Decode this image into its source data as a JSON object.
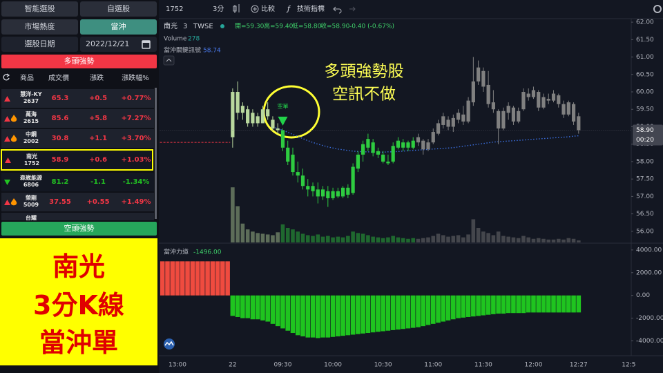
{
  "toolbar": {
    "symbol": "1752",
    "interval": "3分",
    "compare": "比較",
    "indicators": "技術指標"
  },
  "sidebar": {
    "tabs": [
      "智能選股",
      "自選股",
      "市場熱度",
      "當沖"
    ],
    "date_label": "選股日期",
    "date": "2022/12/21",
    "bull_section": "多頭強勢",
    "bear_section": "空頭強勢",
    "table": {
      "header": [
        "商品",
        "成交價",
        "漲跌",
        "漲跌幅%"
      ],
      "rows": [
        [
          "慧洋-KY",
          "2637",
          "65.3",
          "+0.5",
          "+0.77%"
        ],
        [
          "萬海",
          "2615",
          "85.6",
          "+5.8",
          "+7.27%"
        ],
        [
          "中鋼",
          "2002",
          "30.8",
          "+1.1",
          "+3.70%"
        ],
        [
          "南光",
          "1752",
          "58.9",
          "+0.6",
          "+1.03%"
        ],
        [
          "森崴能源",
          "6806",
          "81.2",
          "-1.1",
          "-1.34%"
        ],
        [
          "榮剛",
          "5009",
          "37.55",
          "+0.55",
          "+1.49%"
        ],
        [
          "台耀"
        ]
      ]
    }
  },
  "legend": {
    "name": "南光",
    "interval": "3",
    "exchange": "TWSE",
    "ohlc": [
      "開=59.30",
      "高=59.40",
      "低=58.80",
      "收=58.90"
    ],
    "change": "-0.40 (-0.67%)",
    "volume_label": "Volume",
    "volume": "278",
    "signal_label": "當沖關鍵訊號",
    "signal": "58.74",
    "power_label": "當沖力道",
    "power": "-1496.00"
  },
  "annotation": {
    "lines": [
      "多頭強勢股",
      "空訊不做"
    ]
  },
  "caption": {
    "lines": [
      "南光",
      "3分K線",
      "當沖單"
    ]
  },
  "chart_data": [
    {
      "type": "candlestick",
      "categories": [
        null,
        null,
        null,
        "13:00",
        null,
        null,
        null,
        null,
        null,
        null,
        null,
        null,
        null,
        null,
        "22",
        null,
        null,
        null,
        null,
        null,
        null,
        null,
        null,
        null,
        "09:30",
        null,
        null,
        null,
        null,
        null,
        null,
        null,
        null,
        null,
        "10:00",
        null,
        null,
        null,
        null,
        null,
        null,
        null,
        null,
        null,
        "10:30",
        null,
        null,
        null,
        null,
        null,
        null,
        null,
        null,
        null,
        "11:00",
        null,
        null,
        null,
        null,
        null,
        null,
        null,
        null,
        null,
        "11:30",
        null,
        null,
        null,
        null,
        null,
        null,
        null,
        null,
        null,
        "12:00",
        null,
        null,
        null,
        null,
        null,
        null,
        null,
        null,
        "12:27",
        null,
        null,
        null,
        null,
        null,
        null,
        null,
        null,
        null,
        "12:5"
      ],
      "open": [
        null,
        null,
        null,
        null,
        null,
        null,
        null,
        null,
        null,
        null,
        null,
        null,
        null,
        null,
        58.7,
        60.0,
        59.4,
        59.5,
        59.1,
        59.3,
        59.1,
        59.5,
        59.2,
        58.95,
        58.9,
        58.4,
        58.2,
        57.7,
        57.6,
        57.3,
        57.3,
        57.2,
        57.0,
        57.15,
        56.95,
        57.15,
        57.0,
        57.25,
        57.1,
        57.8,
        58.2,
        58.4,
        58.55,
        58.3,
        58.2,
        58.0,
        58.0,
        58.4,
        58.55,
        58.4,
        58.4,
        58.55,
        58.6,
        58.35,
        58.55,
        58.8,
        59.05,
        59.2,
        59.0,
        59.2,
        59.35,
        59.15,
        59.7,
        60.3,
        60.6,
        60.2,
        59.7,
        59.45,
        58.95,
        59.4,
        59.55,
        59.15,
        59.5,
        59.95,
        59.85,
        60.0,
        59.55,
        59.8,
        59.75,
        59.9,
        59.65,
        59.35,
        59.65,
        59.3,
        null,
        null,
        null,
        null,
        null,
        null,
        null,
        null,
        null,
        null
      ],
      "high": [
        null,
        null,
        null,
        null,
        null,
        null,
        null,
        null,
        null,
        null,
        null,
        null,
        null,
        null,
        60.1,
        60.3,
        59.7,
        59.6,
        59.5,
        59.4,
        59.6,
        59.7,
        59.3,
        59.1,
        58.95,
        58.6,
        58.4,
        58.0,
        57.8,
        57.5,
        57.4,
        57.4,
        57.3,
        57.3,
        57.25,
        57.25,
        57.3,
        57.35,
        57.95,
        58.3,
        58.6,
        58.8,
        58.65,
        58.4,
        58.3,
        58.2,
        58.55,
        58.7,
        58.65,
        58.6,
        58.7,
        58.8,
        58.65,
        58.65,
        58.95,
        59.2,
        59.4,
        59.3,
        59.35,
        59.5,
        59.6,
        59.85,
        61.0,
        60.9,
        60.7,
        60.6,
        60.05,
        59.5,
        59.55,
        59.7,
        59.6,
        59.55,
        60.1,
        60.1,
        60.15,
        60.05,
        59.95,
        59.95,
        60.05,
        59.95,
        59.75,
        59.75,
        59.7,
        59.4,
        null,
        null,
        null,
        null,
        null,
        null,
        null,
        null,
        null,
        null
      ],
      "low": [
        null,
        null,
        null,
        null,
        null,
        null,
        null,
        null,
        null,
        null,
        null,
        null,
        null,
        null,
        58.4,
        59.2,
        59.2,
        59.0,
        59.0,
        59.0,
        59.1,
        59.2,
        58.9,
        58.8,
        58.3,
        57.9,
        57.6,
        57.4,
        57.2,
        57.0,
        57.0,
        56.8,
        56.9,
        56.7,
        56.9,
        56.95,
        56.95,
        56.95,
        57.05,
        57.7,
        58.0,
        58.3,
        58.15,
        58.1,
        57.95,
        57.9,
        57.95,
        58.35,
        58.3,
        58.3,
        58.35,
        58.45,
        58.2,
        58.3,
        58.5,
        58.75,
        58.95,
        58.9,
        58.85,
        59.1,
        59.05,
        59.1,
        59.6,
        60.2,
        60.0,
        59.55,
        59.4,
        58.5,
        58.9,
        59.2,
        59.05,
        59.1,
        59.45,
        59.75,
        59.8,
        59.45,
        59.5,
        59.65,
        59.7,
        59.55,
        59.25,
        59.3,
        59.05,
        58.8,
        null,
        null,
        null,
        null,
        null,
        null,
        null,
        null,
        null,
        null
      ],
      "close": [
        null,
        null,
        null,
        null,
        null,
        null,
        null,
        null,
        null,
        null,
        null,
        null,
        null,
        null,
        60.0,
        59.4,
        59.6,
        59.1,
        59.4,
        59.1,
        59.5,
        59.3,
        58.95,
        58.9,
        58.4,
        58.0,
        57.7,
        57.6,
        57.3,
        57.2,
        57.15,
        57.0,
        57.2,
        56.95,
        57.15,
        57.0,
        57.25,
        57.05,
        57.85,
        58.2,
        58.5,
        58.65,
        58.25,
        58.2,
        58.0,
        57.95,
        58.45,
        58.6,
        58.4,
        58.55,
        58.6,
        58.7,
        58.35,
        58.55,
        58.85,
        59.1,
        59.3,
        59.0,
        59.25,
        59.4,
        59.15,
        59.75,
        60.3,
        60.7,
        60.15,
        59.65,
        59.5,
        58.95,
        59.45,
        59.6,
        59.15,
        59.45,
        60.0,
        59.85,
        60.05,
        59.55,
        59.85,
        59.75,
        59.95,
        59.65,
        59.35,
        59.7,
        59.15,
        58.9,
        null,
        null,
        null,
        null,
        null,
        null,
        null,
        null,
        null,
        null
      ],
      "colors": [
        null,
        null,
        null,
        null,
        null,
        null,
        null,
        null,
        null,
        null,
        null,
        null,
        null,
        null,
        "#b9d89e",
        "#b9d89e",
        "#b9d89e",
        "#b9d89e",
        "#b9d89e",
        "#b9d89e",
        "#b9d89e",
        "#b9d89e",
        "#b9d89e",
        "#b9d89e",
        "#2ecc40",
        "#2ecc40",
        "#2ecc40",
        "#2ecc40",
        "#2ecc40",
        "#2ecc40",
        "#2ecc40",
        "#2ecc40",
        "#2ecc40",
        "#2ecc40",
        "#2ecc40",
        "#2ecc40",
        "#2ecc40",
        "#2ecc40",
        "#2ecc40",
        "#2ecc40",
        "#2ecc40",
        "#2ecc40",
        "#2ecc40",
        "#2ecc40",
        "#2ecc40",
        "#2ecc40",
        "#2ecc40",
        "#2ecc40",
        "#2ecc40",
        "#2ecc40",
        "#2ecc40",
        "#808080",
        "#808080",
        "#808080",
        "#808080",
        "#808080",
        "#808080",
        "#808080",
        "#808080",
        "#808080",
        "#808080",
        "#808080",
        "#808080",
        "#808080",
        "#808080",
        "#808080",
        "#808080",
        "#808080",
        "#808080",
        "#808080",
        "#808080",
        "#808080",
        "#808080",
        "#808080",
        "#808080",
        "#808080",
        "#808080",
        "#808080",
        "#808080",
        "#808080",
        "#808080",
        "#808080",
        "#808080",
        "#808080",
        null,
        null,
        null,
        null,
        null,
        null,
        null,
        null,
        null,
        null
      ],
      "volume": [
        null,
        null,
        null,
        null,
        null,
        null,
        null,
        null,
        null,
        null,
        null,
        null,
        null,
        null,
        7600,
        5000,
        2600,
        1800,
        1500,
        1300,
        1200,
        1100,
        1000,
        1400,
        2500,
        2000,
        1800,
        1500,
        1200,
        1000,
        900,
        1100,
        800,
        900,
        700,
        800,
        700,
        900,
        1500,
        1300,
        1200,
        1000,
        800,
        700,
        600,
        700,
        900,
        700,
        600,
        500,
        600,
        500,
        600,
        700,
        900,
        1200,
        1000,
        800,
        900,
        1000,
        700,
        1100,
        3200,
        2000,
        1500,
        1300,
        1000,
        1500,
        900,
        800,
        700,
        600,
        900,
        700,
        500,
        600,
        500,
        400,
        400,
        500,
        400,
        600,
        500,
        278,
        null,
        null,
        null,
        null,
        null,
        null,
        null,
        null,
        null,
        null
      ],
      "ma": {
        "color": "#3b6fe0",
        "values": [
          null,
          null,
          null,
          null,
          null,
          null,
          null,
          null,
          null,
          null,
          null,
          null,
          null,
          null,
          null,
          null,
          null,
          null,
          null,
          null,
          null,
          null,
          59.0,
          58.95,
          58.9,
          58.84,
          58.78,
          58.72,
          58.66,
          58.6,
          58.55,
          58.5,
          58.46,
          58.42,
          58.39,
          58.36,
          58.34,
          58.32,
          58.3,
          58.29,
          58.28,
          58.28,
          58.27,
          58.27,
          58.27,
          58.28,
          58.28,
          58.29,
          58.3,
          58.31,
          58.32,
          58.33,
          58.34,
          58.35,
          58.36,
          58.37,
          58.38,
          58.39,
          58.4,
          58.42,
          58.44,
          58.46,
          58.48,
          58.5,
          58.52,
          58.54,
          58.56,
          58.57,
          58.58,
          58.59,
          58.6,
          58.61,
          58.62,
          58.63,
          58.64,
          58.65,
          58.66,
          58.67,
          58.68,
          58.69,
          58.7,
          58.71,
          58.73,
          58.74,
          null,
          null,
          null,
          null,
          null,
          null,
          null,
          null,
          null,
          null
        ]
      },
      "reference_line": {
        "value": 58.55,
        "color": "#f23645"
      },
      "short_signal": {
        "label": "空單",
        "color": "#22d34a",
        "values": [
          null,
          null,
          null,
          null,
          null,
          null,
          null,
          null,
          null,
          null,
          null,
          null,
          null,
          null,
          null,
          null,
          null,
          null,
          null,
          null,
          null,
          null,
          null,
          null,
          59.15,
          null,
          null,
          null,
          null,
          null,
          null,
          null,
          null,
          null,
          null,
          null,
          null,
          null,
          null,
          null,
          null,
          null,
          null,
          null,
          null,
          null,
          null,
          null,
          null,
          null,
          null,
          null,
          null,
          null,
          null,
          null,
          null,
          null,
          null,
          null,
          null,
          null,
          null,
          null,
          null,
          null,
          null,
          null,
          null,
          null,
          null,
          null,
          null,
          null,
          null,
          null,
          null,
          null,
          null,
          null,
          null,
          null,
          null,
          null,
          null,
          null,
          null,
          null,
          null,
          null,
          null,
          null,
          null,
          null
        ]
      },
      "last_price": {
        "value": 58.9,
        "label": "58.90"
      },
      "countdown": "00:20",
      "ylim": [
        55.7,
        62.2
      ],
      "yticks": [
        {
          "value": 62,
          "label": "62.00"
        },
        {
          "value": 61.5,
          "label": "61.50"
        },
        {
          "value": 61,
          "label": "61.00"
        },
        {
          "value": 60.5,
          "label": "60.50"
        },
        {
          "value": 60,
          "label": "60.00"
        },
        {
          "value": 59.5,
          "label": "59.50"
        },
        {
          "value": 59,
          "label": "59.00"
        },
        {
          "value": 58.5,
          "label": "58.50"
        },
        {
          "value": 58,
          "label": "58.00"
        },
        {
          "value": 57.5,
          "label": "57.50"
        },
        {
          "value": 57,
          "label": "57.00"
        },
        {
          "value": 56.5,
          "label": "56.50"
        },
        {
          "value": 56,
          "label": "56.00"
        }
      ],
      "grid": false
    },
    {
      "type": "bar",
      "positive_color": "#ef4b3f",
      "negative_color": "#1fc41f",
      "values": [
        3000,
        3000,
        3000,
        3000,
        3000,
        3000,
        3000,
        3000,
        3000,
        3000,
        3000,
        3000,
        3000,
        3000,
        -1800,
        -1900,
        -2000,
        -2000,
        -2100,
        -2100,
        -2200,
        -2300,
        -2500,
        -2700,
        -2900,
        -3100,
        -3300,
        -3500,
        -3600,
        -3700,
        -3700,
        -3750,
        -3700,
        -3700,
        -3650,
        -3600,
        -3550,
        -3500,
        -3450,
        -3400,
        -3350,
        -3300,
        -3250,
        -3200,
        -3150,
        -3100,
        -3050,
        -3000,
        -2950,
        -2900,
        -2850,
        -2800,
        -2700,
        -2600,
        -2500,
        -2400,
        -2300,
        -2200,
        -2100,
        -2000,
        -1950,
        -1900,
        -1850,
        -1800,
        -1750,
        -1700,
        -1650,
        -1600,
        -1600,
        -1550,
        -1550,
        -1550,
        -1550,
        -1500,
        -1500,
        -1500,
        -1500,
        -1500,
        -1500,
        -1500,
        -1500,
        -1500,
        -1500,
        -1496,
        null,
        null,
        null,
        null,
        null,
        null,
        null,
        null,
        null,
        null
      ],
      "ylim": [
        -5000,
        4600
      ],
      "yticks": [
        {
          "value": 4000,
          "label": "4000.00"
        },
        {
          "value": 2000,
          "label": "2000.00"
        },
        {
          "value": 0,
          "label": "0.00"
        },
        {
          "value": -2000,
          "label": "-2000.00"
        },
        {
          "value": -4000,
          "label": "-4000.00"
        }
      ]
    }
  ]
}
